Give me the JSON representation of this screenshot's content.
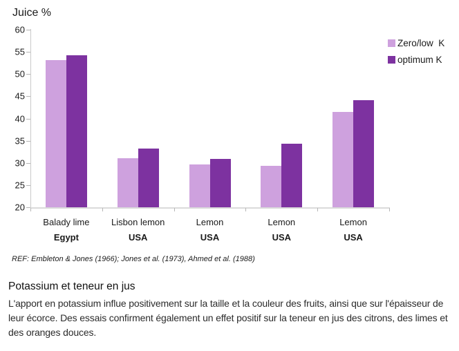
{
  "chart": {
    "legend": [
      {
        "label": "Zero/low  K",
        "color": "#CEA1DE"
      },
      {
        "label": "optimum K",
        "color": "#7D32A0"
      }
    ]
  },
  "chart_data": {
    "type": "bar",
    "title": "Juice %",
    "ylabel": "Juice %",
    "xlabel": "",
    "categories": [
      {
        "name": "Balady lime",
        "origin": "Egypt"
      },
      {
        "name": "Lisbon lemon",
        "origin": "USA"
      },
      {
        "name": "Lemon",
        "origin": "USA"
      },
      {
        "name": "Lemon",
        "origin": "USA"
      },
      {
        "name": "Lemon",
        "origin": "USA"
      }
    ],
    "series": [
      {
        "name": "Zero/low K",
        "color": "#CEA1DE",
        "values": [
          53.2,
          31.0,
          29.6,
          29.4,
          41.5
        ]
      },
      {
        "name": "optimum K",
        "color": "#7D32A0",
        "values": [
          54.3,
          33.2,
          30.9,
          34.3,
          44.2
        ]
      }
    ],
    "ylim": [
      20,
      60
    ],
    "ytick_step": 5,
    "grid": false,
    "legend_position": "top-right"
  },
  "reference": "REF: Embleton & Jones (1966); Jones et al. (1973), Ahmed et al. (1988)",
  "article": {
    "heading": "Potassium et teneur en jus",
    "body": "L'apport en potassium influe positivement sur la taille et la couleur des fruits, ainsi que sur l'épaisseur de leur écorce. Des essais confirment également un effet positif sur la teneur en jus des citrons, des limes et des oranges douces."
  }
}
